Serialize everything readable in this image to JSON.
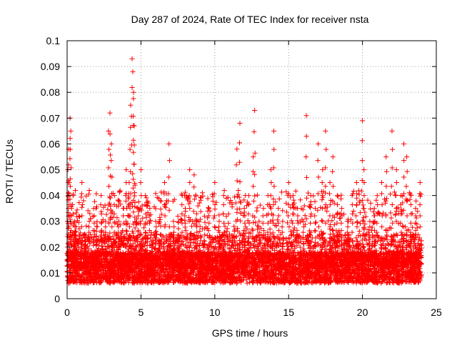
{
  "chart_data": {
    "type": "scatter",
    "title": "Day 287 of 2024, Rate Of TEC Index for receiver nsta",
    "xlabel": "GPS time / hours",
    "ylabel": "ROTI / TECUs",
    "xlim": [
      0,
      25
    ],
    "ylim": [
      0,
      0.1
    ],
    "xticks": [
      "0",
      "5",
      "10",
      "15",
      "20",
      "25"
    ],
    "xtick_values": [
      0,
      5,
      10,
      15,
      20,
      25
    ],
    "yticks": [
      "0",
      "0.01",
      "0.02",
      "0.03",
      "0.04",
      "0.05",
      "0.06",
      "0.07",
      "0.08",
      "0.09",
      "0.1"
    ],
    "ytick_values": [
      0,
      0.01,
      0.02,
      0.03,
      0.04,
      0.05,
      0.06,
      0.07,
      0.08,
      0.09,
      0.1
    ],
    "grid": true,
    "marker": "plus",
    "color": "#ff0000",
    "series": [
      {
        "name": "ROTI",
        "x": [
          0.05,
          0.1,
          0.15,
          0.2,
          0.25,
          0.3,
          0.4,
          0.5,
          0.6,
          0.8,
          1.0,
          1.2,
          1.5,
          1.8,
          2.0,
          2.3,
          2.6,
          2.8,
          2.9,
          3.0,
          3.2,
          3.5,
          3.8,
          4.0,
          4.2,
          4.3,
          4.4,
          4.45,
          4.5,
          4.55,
          4.6,
          4.8,
          5.0,
          5.3,
          5.6,
          6.0,
          6.3,
          6.6,
          6.9,
          7.0,
          7.2,
          7.5,
          7.8,
          8.0,
          8.3,
          8.6,
          8.8,
          9.0,
          9.3,
          9.6,
          10.0,
          10.3,
          10.6,
          11.0,
          11.3,
          11.5,
          11.7,
          12.0,
          12.3,
          12.6,
          12.7,
          13.0,
          13.3,
          13.6,
          13.8,
          14.0,
          14.3,
          14.6,
          15.0,
          15.3,
          15.6,
          16.0,
          16.2,
          16.5,
          16.8,
          17.0,
          17.3,
          17.5,
          17.8,
          18.0,
          18.3,
          18.6,
          19.0,
          19.3,
          19.6,
          20.0,
          20.1,
          20.5,
          20.8,
          21.0,
          21.3,
          21.6,
          22.0,
          22.3,
          22.6,
          22.8,
          23.0,
          23.3,
          23.6,
          23.9
        ],
        "values": [
          0.05,
          0.058,
          0.045,
          0.07,
          0.065,
          0.035,
          0.04,
          0.03,
          0.028,
          0.032,
          0.045,
          0.025,
          0.03,
          0.035,
          0.028,
          0.04,
          0.03,
          0.065,
          0.072,
          0.06,
          0.04,
          0.03,
          0.035,
          0.05,
          0.045,
          0.075,
          0.093,
          0.088,
          0.08,
          0.067,
          0.044,
          0.035,
          0.05,
          0.04,
          0.035,
          0.03,
          0.038,
          0.045,
          0.06,
          0.025,
          0.03,
          0.032,
          0.04,
          0.035,
          0.05,
          0.048,
          0.03,
          0.028,
          0.032,
          0.035,
          0.045,
          0.03,
          0.04,
          0.025,
          0.028,
          0.058,
          0.068,
          0.035,
          0.04,
          0.055,
          0.073,
          0.03,
          0.035,
          0.04,
          0.05,
          0.065,
          0.035,
          0.03,
          0.045,
          0.04,
          0.035,
          0.03,
          0.071,
          0.04,
          0.035,
          0.06,
          0.05,
          0.065,
          0.045,
          0.055,
          0.04,
          0.035,
          0.03,
          0.04,
          0.045,
          0.069,
          0.05,
          0.03,
          0.035,
          0.04,
          0.045,
          0.055,
          0.065,
          0.05,
          0.04,
          0.06,
          0.055,
          0.04,
          0.035,
          0.045
        ]
      }
    ]
  }
}
